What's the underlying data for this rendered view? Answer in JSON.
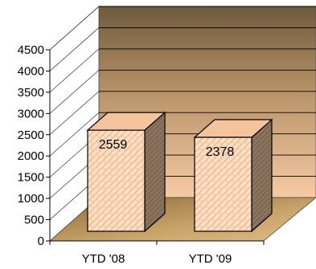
{
  "chart_data": {
    "type": "bar",
    "three_d": true,
    "categories": [
      "YTD '08",
      "YTD '09"
    ],
    "values": [
      2559,
      2378
    ],
    "data_labels": [
      "2559",
      "2378"
    ],
    "title": "",
    "xlabel": "",
    "ylabel": "",
    "ylim": [
      0,
      4500
    ],
    "yticks": [
      0,
      500,
      1000,
      1500,
      2000,
      2500,
      3000,
      3500,
      4000,
      4500
    ],
    "grid": true,
    "legend": "none",
    "colors": {
      "wall_top": "#6e5a3c",
      "wall_bottom": "#f6caa4",
      "floor": "#c09a5e",
      "bar_front": "#fde0c4",
      "bar_front_pattern": "#e8b08a",
      "bar_side": "#8c7560",
      "bar_top": "#f5c39c",
      "gridline": "#000000"
    }
  }
}
